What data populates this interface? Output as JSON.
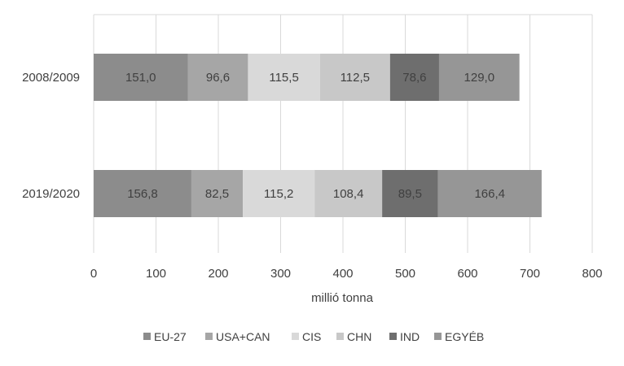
{
  "chart_data": {
    "type": "bar",
    "orientation": "horizontal",
    "stacked": true,
    "categories": [
      "2008/2009",
      "2019/2020"
    ],
    "series": [
      {
        "name": "EU-27",
        "values": [
          151.0,
          156.8
        ],
        "labels": [
          "151,0",
          "156,8"
        ],
        "color": "#8c8c8c"
      },
      {
        "name": "USA+CAN",
        "values": [
          96.6,
          82.5
        ],
        "labels": [
          "96,6",
          "82,5"
        ],
        "color": "#a6a6a6"
      },
      {
        "name": "CIS",
        "values": [
          115.5,
          115.2
        ],
        "labels": [
          "115,5",
          "115,2"
        ],
        "color": "#d9d9d9"
      },
      {
        "name": "CHN",
        "values": [
          112.5,
          108.4
        ],
        "labels": [
          "112,5",
          "108,4"
        ],
        "color": "#c8c8c8"
      },
      {
        "name": "IND",
        "values": [
          78.6,
          89.5
        ],
        "labels": [
          "78,6",
          "89,5"
        ],
        "color": "#6e6e6e"
      },
      {
        "name": "EGYÉB",
        "values": [
          129.0,
          166.4
        ],
        "labels": [
          "129,0",
          "166,4"
        ],
        "color": "#969696"
      }
    ],
    "xlabel": "millió tonna",
    "ylabel": "",
    "xlim": [
      0,
      800
    ],
    "xticks": [
      0,
      100,
      200,
      300,
      400,
      500,
      600,
      700,
      800
    ],
    "xtick_labels": [
      "0",
      "100",
      "200",
      "300",
      "400",
      "500",
      "600",
      "700",
      "800"
    ],
    "grid": true,
    "legend_position": "bottom"
  }
}
